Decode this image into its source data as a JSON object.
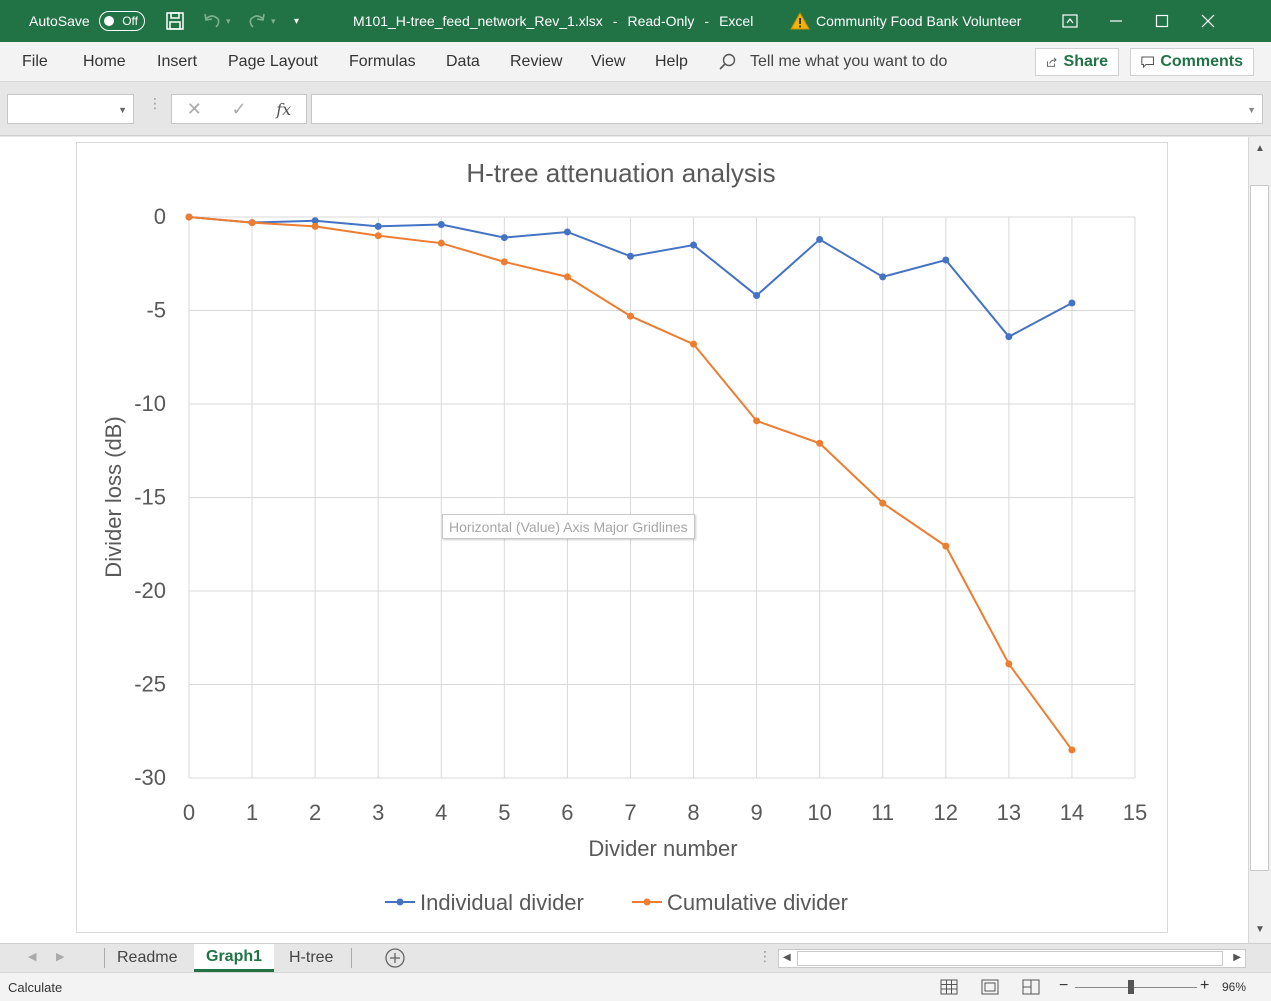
{
  "titlebar": {
    "autosave_label": "AutoSave",
    "autosave_state": "Off",
    "filename": "M101_H-tree_feed_network_Rev_1.xlsx",
    "sep1": "-",
    "mode": "Read-Only",
    "sep2": "-",
    "app": "Excel",
    "user": "Community Food Bank Volunteer",
    "bg_color": "#217346"
  },
  "ribbon": {
    "tabs": [
      "File",
      "Home",
      "Insert",
      "Page Layout",
      "Formulas",
      "Data",
      "Review",
      "View",
      "Help"
    ],
    "tell_me": "Tell me what you want to do",
    "share_label": "Share",
    "comments_label": "Comments"
  },
  "formula_bar": {
    "name_box": "",
    "formula": "",
    "fx_label": "fx"
  },
  "tooltip": "Horizontal (Value) Axis Major Gridlines",
  "sheet_tabs": {
    "tabs": [
      "Readme",
      "Graph1",
      "H-tree"
    ],
    "active": "Graph1"
  },
  "status": {
    "mode": "Calculate",
    "zoom": "96%"
  },
  "chart_data": {
    "type": "scatter",
    "title": "H-tree attenuation analysis",
    "xlabel": "Divider number",
    "ylabel": "Divider loss (dB)",
    "xlim": [
      0,
      15
    ],
    "ylim": [
      -30,
      0
    ],
    "xticks": [
      0,
      1,
      2,
      3,
      4,
      5,
      6,
      7,
      8,
      9,
      10,
      11,
      12,
      13,
      14,
      15
    ],
    "yticks": [
      0,
      -5,
      -10,
      -15,
      -20,
      -25,
      -30
    ],
    "grid": true,
    "legend_position": "bottom",
    "series": [
      {
        "name": "Individual divider",
        "color": "#4472C4",
        "x": [
          0,
          1,
          2,
          3,
          4,
          5,
          6,
          7,
          8,
          9,
          10,
          11,
          12,
          13,
          14
        ],
        "y": [
          0,
          -0.3,
          -0.2,
          -0.5,
          -0.4,
          -1.1,
          -0.8,
          -2.1,
          -1.5,
          -4.2,
          -1.2,
          -3.2,
          -2.3,
          -6.4,
          -4.6
        ]
      },
      {
        "name": "Cumulative divider",
        "color": "#ED7D31",
        "x": [
          0,
          1,
          2,
          3,
          4,
          5,
          6,
          7,
          8,
          9,
          10,
          11,
          12,
          13,
          14
        ],
        "y": [
          0,
          -0.3,
          -0.5,
          -1.0,
          -1.4,
          -2.4,
          -3.2,
          -5.3,
          -6.8,
          -10.9,
          -12.1,
          -15.3,
          -17.6,
          -23.9,
          -28.5
        ]
      }
    ]
  }
}
